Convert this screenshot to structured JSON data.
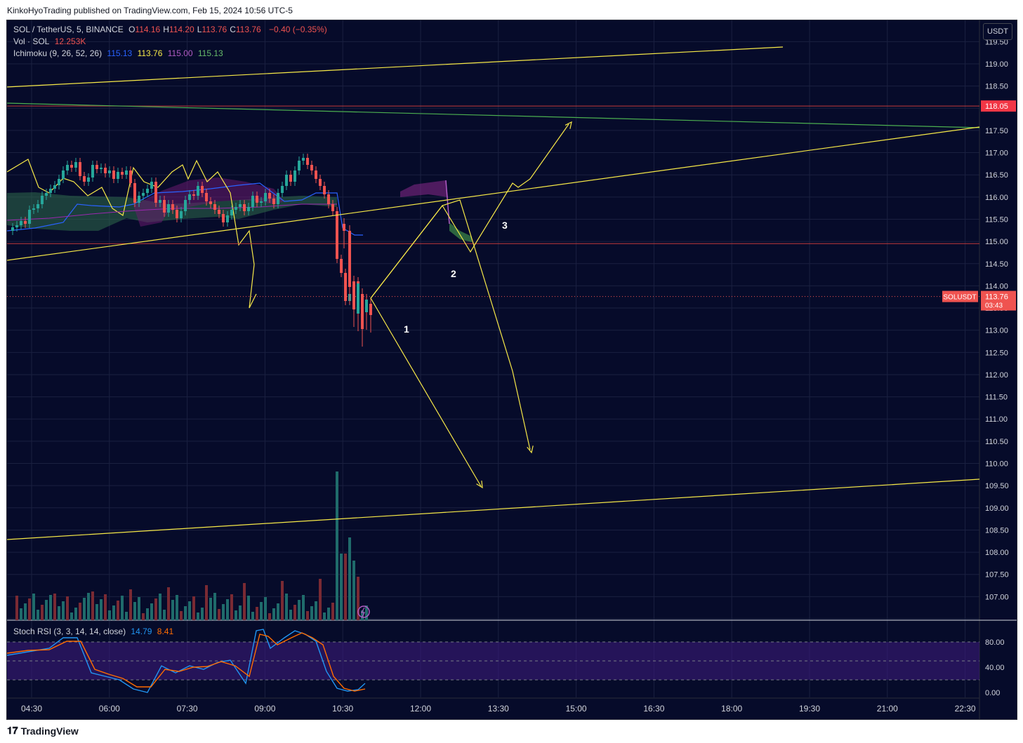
{
  "header": {
    "publisher": "KinkoHyoTrading published on TradingView.com, Feb 15, 2024 10:56 UTC-5"
  },
  "legend": {
    "symbol": "SOL / TetherUS, 5, BINANCE",
    "ohlc": [
      {
        "k": "O",
        "v": "114.16"
      },
      {
        "k": "H",
        "v": "114.20"
      },
      {
        "k": "L",
        "v": "113.76"
      },
      {
        "k": "C",
        "v": "113.76"
      }
    ],
    "change": "−0.40 (−0.35%)",
    "vol_label": "Vol · SOL",
    "vol_value": "12.253K",
    "ichimoku_label": "Ichimoku (9, 26, 52, 26)",
    "ichimoku_values": [
      "115.13",
      "113.76",
      "115.00",
      "115.13"
    ],
    "stoch_label": "Stoch RSI (3, 3, 14, 14, close)",
    "stoch_k": "14.79",
    "stoch_d": "8.41"
  },
  "currency_button": "USDT",
  "price_tag": {
    "symbol": "SOLUSDT",
    "price": "113.76",
    "countdown": "03:43"
  },
  "level_tag": "118.05",
  "footer": {
    "brand": "TradingView"
  },
  "colors": {
    "background": "#060b2a",
    "up": "#26a69a",
    "down": "#ef5350",
    "drawing": "#f7e948",
    "cloud_green": "#4caf50",
    "cloud_purple": "#9c27b0",
    "stoch_k": "#2196f3",
    "stoch_d": "#ff6d00"
  },
  "chart_data": {
    "type": "candlestick",
    "price_axis": {
      "min": 106.5,
      "max": 119.5,
      "ticks": [
        106.5,
        107.0,
        107.5,
        108.0,
        108.5,
        109.0,
        109.5,
        110.0,
        110.5,
        111.0,
        111.5,
        112.0,
        112.5,
        113.0,
        113.5,
        114.0,
        114.5,
        115.0,
        115.5,
        116.0,
        116.5,
        117.0,
        117.5,
        118.0,
        118.5,
        119.0,
        119.5
      ]
    },
    "time_axis": {
      "ticks": [
        "04:30",
        "06:00",
        "07:30",
        "09:00",
        "10:30",
        "12:00",
        "13:30",
        "15:00",
        "16:30",
        "18:00",
        "19:30",
        "21:00",
        "22:30"
      ]
    },
    "horizontal_levels": [
      118.05,
      114.95
    ],
    "last_price": 113.76,
    "annotations": [
      "1",
      "2",
      "3"
    ],
    "stoch_axis": {
      "ticks": [
        "80.00",
        "40.00",
        "0.00"
      ],
      "upper": 80,
      "lower": 20
    },
    "stoch_rsi": {
      "k": 14.79,
      "d": 8.41
    }
  }
}
